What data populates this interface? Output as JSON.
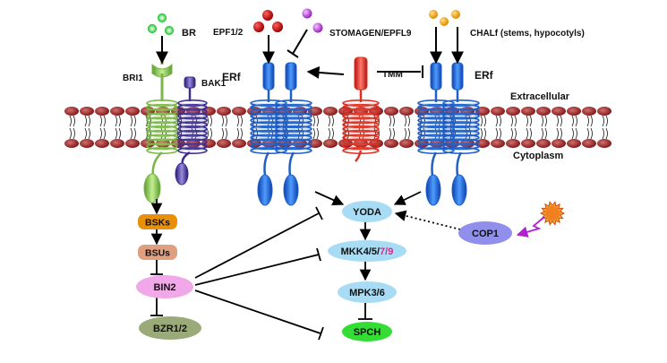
{
  "labels": {
    "br": "BR",
    "epf": "EPF1/2",
    "stomagen": "STOMAGEN/EPFL9",
    "chalf": "CHALf (stems, hypocotyls)",
    "bri1": "BRI1",
    "bak1": "BAK1",
    "erf_left": "ERf",
    "erf_right": "ERf",
    "tmm": "TMM",
    "extracellular": "Extracellular",
    "cytoplasm": "Cytoplasm"
  },
  "nodes": {
    "bsks": "BSKs",
    "bsus": "BSUs",
    "bin2": "BIN2",
    "bzr": "BZR1/2",
    "yoda": "YODA",
    "mkk_prefix": "MKK4/5/",
    "mkk_suffix": "7/9",
    "mpk": "MPK3/6",
    "spch": "SPCH",
    "cop1": "COP1"
  },
  "colors": {
    "bri1": "#7ab648",
    "bak1": "#3b2f8f",
    "erf": "#1e5fc8",
    "tmm": "#e03020",
    "membrane": "#8b1010",
    "bsks": "#e8900a",
    "bsus": "#e0a080",
    "bin2": "#f0a8e8",
    "bzr": "#9aaa78",
    "kinase": "#a8dcf4",
    "spch": "#33dd33",
    "cop1": "#9090ec",
    "mkk_highlight": "#d0308a",
    "br_ligand": "#55dd55",
    "epf_ligand": "#c00000",
    "stomagen_ligand": "#b030d0",
    "chalf_ligand": "#f0a020",
    "light": "#e86010",
    "light_arrow": "#b020d0"
  }
}
